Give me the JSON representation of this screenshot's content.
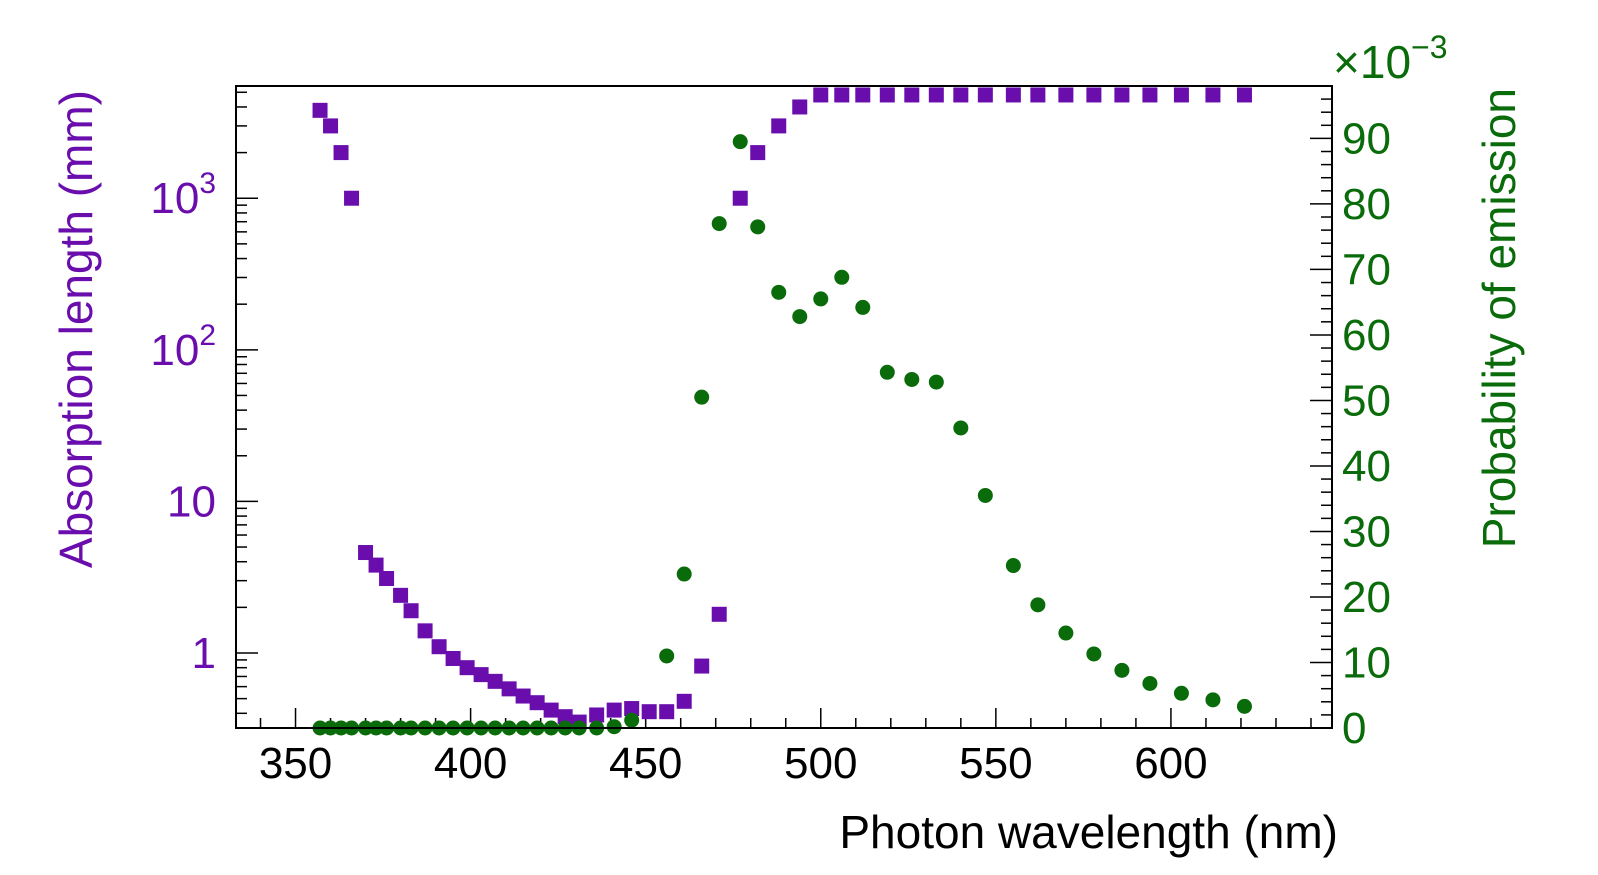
{
  "chart_data": {
    "type": "scatter",
    "title": "",
    "xlabel": "Photon wavelength (nm)",
    "xlim": [
      333,
      646
    ],
    "x_ticks": [
      350,
      400,
      450,
      500,
      550,
      600
    ],
    "x_tick_labels": [
      "350",
      "400",
      "450",
      "500",
      "550",
      "600"
    ],
    "y_left": {
      "label": "Absorption length (mm)",
      "scale": "log",
      "range": [
        0.32,
        5500
      ],
      "tick_values": [
        1,
        10,
        100,
        1000
      ],
      "tick_labels": [
        {
          "base": "1",
          "exp": ""
        },
        {
          "base": "10",
          "exp": ""
        },
        {
          "base": "10",
          "exp": "2"
        },
        {
          "base": "10",
          "exp": "3"
        }
      ],
      "color": "#6a0dad"
    },
    "y_right": {
      "label": "Probability of emission",
      "scale": "linear",
      "range": [
        0,
        98
      ],
      "multiplier": {
        "base": "×10",
        "exp": "−3"
      },
      "tick_values": [
        0,
        10,
        20,
        30,
        40,
        50,
        60,
        70,
        80,
        90
      ],
      "tick_labels": [
        "0",
        "10",
        "20",
        "30",
        "40",
        "50",
        "60",
        "70",
        "80",
        "90"
      ],
      "color": "#0a6b0a"
    },
    "series": [
      {
        "name": "Absorption length",
        "axis": "left",
        "marker": "square",
        "color": "#6a0dad",
        "points": [
          [
            357,
            3800
          ],
          [
            360,
            3000
          ],
          [
            363,
            2000
          ],
          [
            366,
            1000
          ],
          [
            370,
            4.6
          ],
          [
            373,
            3.8
          ],
          [
            376,
            3.1
          ],
          [
            380,
            2.4
          ],
          [
            383,
            1.9
          ],
          [
            387,
            1.4
          ],
          [
            391,
            1.1
          ],
          [
            395,
            0.92
          ],
          [
            399,
            0.8
          ],
          [
            403,
            0.72
          ],
          [
            407,
            0.65
          ],
          [
            411,
            0.58
          ],
          [
            415,
            0.52
          ],
          [
            419,
            0.47
          ],
          [
            423,
            0.42
          ],
          [
            427,
            0.38
          ],
          [
            431,
            0.35
          ],
          [
            436,
            0.39
          ],
          [
            441,
            0.42
          ],
          [
            446,
            0.43
          ],
          [
            451,
            0.41
          ],
          [
            456,
            0.41
          ],
          [
            461,
            0.48
          ],
          [
            466,
            0.82
          ],
          [
            471,
            1.8
          ],
          [
            477,
            1000
          ],
          [
            482,
            2000
          ],
          [
            488,
            3000
          ],
          [
            494,
            4000
          ],
          [
            500,
            4800
          ],
          [
            506,
            4800
          ],
          [
            512,
            4800
          ],
          [
            519,
            4800
          ],
          [
            526,
            4800
          ],
          [
            533,
            4800
          ],
          [
            540,
            4800
          ],
          [
            547,
            4800
          ],
          [
            555,
            4800
          ],
          [
            562,
            4800
          ],
          [
            570,
            4800
          ],
          [
            578,
            4800
          ],
          [
            586,
            4800
          ],
          [
            594,
            4800
          ],
          [
            603,
            4800
          ],
          [
            612,
            4800
          ],
          [
            621,
            4800
          ]
        ]
      },
      {
        "name": "Probability of emission",
        "axis": "right",
        "marker": "circle",
        "color": "#0a6b0a",
        "points": [
          [
            357,
            0
          ],
          [
            360,
            0
          ],
          [
            363,
            0
          ],
          [
            366,
            0
          ],
          [
            370,
            0
          ],
          [
            373,
            0
          ],
          [
            376,
            0
          ],
          [
            380,
            0
          ],
          [
            383,
            0
          ],
          [
            387,
            0
          ],
          [
            391,
            0
          ],
          [
            395,
            0
          ],
          [
            399,
            0
          ],
          [
            403,
            0
          ],
          [
            407,
            0
          ],
          [
            411,
            0
          ],
          [
            415,
            0
          ],
          [
            419,
            0
          ],
          [
            423,
            0
          ],
          [
            427,
            0
          ],
          [
            431,
            0
          ],
          [
            436,
            0
          ],
          [
            441,
            0.2
          ],
          [
            446,
            1.2
          ],
          [
            456,
            11
          ],
          [
            461,
            23.5
          ],
          [
            466,
            50.5
          ],
          [
            471,
            77
          ],
          [
            477,
            89.5
          ],
          [
            482,
            76.5
          ],
          [
            488,
            66.5
          ],
          [
            494,
            62.8
          ],
          [
            500,
            65.5
          ],
          [
            506,
            68.8
          ],
          [
            512,
            64.2
          ],
          [
            519,
            54.3
          ],
          [
            526,
            53.2
          ],
          [
            533,
            52.8
          ],
          [
            540,
            45.8
          ],
          [
            547,
            35.5
          ],
          [
            555,
            24.8
          ],
          [
            562,
            18.8
          ],
          [
            570,
            14.5
          ],
          [
            578,
            11.3
          ],
          [
            586,
            8.8
          ],
          [
            594,
            6.8
          ],
          [
            603,
            5.3
          ],
          [
            612,
            4.3
          ],
          [
            621,
            3.3
          ]
        ]
      }
    ]
  }
}
